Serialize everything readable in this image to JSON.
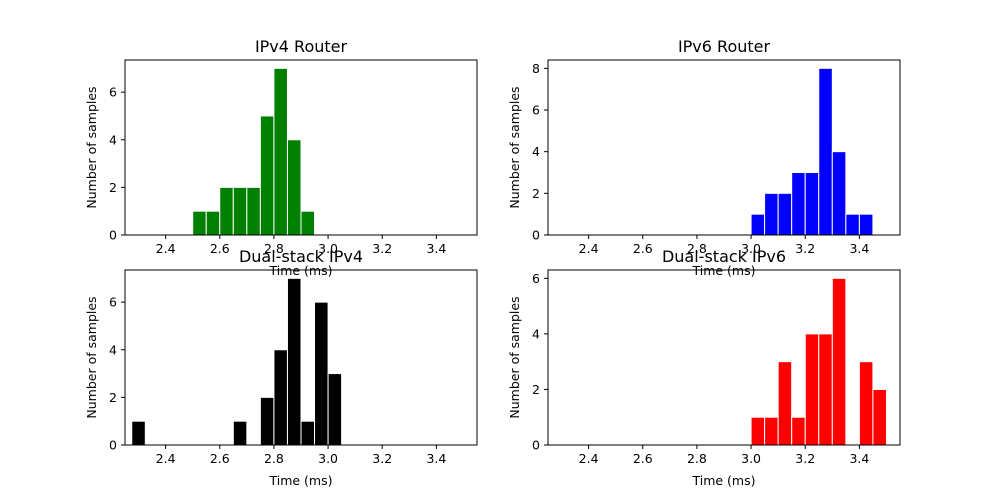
{
  "chart_data": [
    {
      "type": "bar",
      "title": "IPv4 Router",
      "xlabel": "Time (ms)",
      "ylabel": "Number of samples",
      "color": "#008000",
      "xlim": [
        2.25,
        3.55
      ],
      "ylim": [
        0,
        7.35
      ],
      "xticks": [
        "2.4",
        "2.6",
        "2.8",
        "3.0",
        "3.2",
        "3.4"
      ],
      "yticks": [
        "0",
        "2",
        "4",
        "6"
      ],
      "bin_width": 0.05,
      "bins": [
        {
          "x": 2.525,
          "value": 1
        },
        {
          "x": 2.575,
          "value": 1
        },
        {
          "x": 2.625,
          "value": 2
        },
        {
          "x": 2.675,
          "value": 2
        },
        {
          "x": 2.725,
          "value": 2
        },
        {
          "x": 2.775,
          "value": 5
        },
        {
          "x": 2.825,
          "value": 7
        },
        {
          "x": 2.875,
          "value": 4
        },
        {
          "x": 2.925,
          "value": 1
        }
      ]
    },
    {
      "type": "bar",
      "title": "IPv6 Router",
      "xlabel": "Time (ms)",
      "ylabel": "Number of samples",
      "color": "#0000ff",
      "xlim": [
        2.25,
        3.55
      ],
      "ylim": [
        0,
        8.4
      ],
      "xticks": [
        "2.4",
        "2.6",
        "2.8",
        "3.0",
        "3.2",
        "3.4"
      ],
      "yticks": [
        "0",
        "2",
        "4",
        "6",
        "8"
      ],
      "bin_width": 0.05,
      "bins": [
        {
          "x": 3.025,
          "value": 1
        },
        {
          "x": 3.075,
          "value": 2
        },
        {
          "x": 3.125,
          "value": 2
        },
        {
          "x": 3.175,
          "value": 3
        },
        {
          "x": 3.225,
          "value": 3
        },
        {
          "x": 3.275,
          "value": 8
        },
        {
          "x": 3.325,
          "value": 4
        },
        {
          "x": 3.375,
          "value": 1
        },
        {
          "x": 3.425,
          "value": 1
        }
      ]
    },
    {
      "type": "bar",
      "title": "Dual-stack IPv4",
      "xlabel": "Time (ms)",
      "ylabel": "Number of samples",
      "color": "#000000",
      "xlim": [
        2.25,
        3.55
      ],
      "ylim": [
        0,
        7.35
      ],
      "xticks": [
        "2.4",
        "2.6",
        "2.8",
        "3.0",
        "3.2",
        "3.4"
      ],
      "yticks": [
        "0",
        "2",
        "4",
        "6"
      ],
      "bin_width": 0.05,
      "bins": [
        {
          "x": 2.3,
          "value": 1
        },
        {
          "x": 2.675,
          "value": 1
        },
        {
          "x": 2.775,
          "value": 2
        },
        {
          "x": 2.825,
          "value": 4
        },
        {
          "x": 2.875,
          "value": 7
        },
        {
          "x": 2.925,
          "value": 1
        },
        {
          "x": 2.975,
          "value": 6
        },
        {
          "x": 3.025,
          "value": 3
        }
      ]
    },
    {
      "type": "bar",
      "title": "Dual-stack IPv6",
      "xlabel": "Time (ms)",
      "ylabel": "Number of samples",
      "color": "#ff0000",
      "xlim": [
        2.25,
        3.55
      ],
      "ylim": [
        0,
        6.3
      ],
      "xticks": [
        "2.4",
        "2.6",
        "2.8",
        "3.0",
        "3.2",
        "3.4"
      ],
      "yticks": [
        "0",
        "2",
        "4",
        "6"
      ],
      "bin_width": 0.05,
      "bins": [
        {
          "x": 3.025,
          "value": 1
        },
        {
          "x": 3.075,
          "value": 1
        },
        {
          "x": 3.125,
          "value": 3
        },
        {
          "x": 3.175,
          "value": 1
        },
        {
          "x": 3.225,
          "value": 4
        },
        {
          "x": 3.275,
          "value": 4
        },
        {
          "x": 3.325,
          "value": 6
        },
        {
          "x": 3.425,
          "value": 3
        },
        {
          "x": 3.475,
          "value": 2
        }
      ]
    }
  ]
}
